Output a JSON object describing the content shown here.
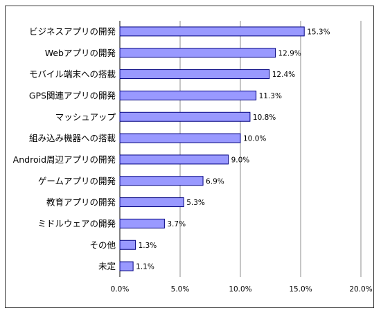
{
  "chart_data": {
    "type": "bar",
    "orientation": "horizontal",
    "categories": [
      "ビジネスアプリの開発",
      "Webアプリの開発",
      "モバイル端末への搭載",
      "GPS関連アプリの開発",
      "マッシュアップ",
      "組み込み機器への搭載",
      "Android周辺アプリの開発",
      "ゲームアプリの開発",
      "教育アプリの開発",
      "ミドルウェアの開発",
      "その他",
      "未定"
    ],
    "values": [
      15.3,
      12.9,
      12.4,
      11.3,
      10.8,
      10.0,
      9.0,
      6.9,
      5.3,
      3.7,
      1.3,
      1.1
    ],
    "value_labels": [
      "15.3%",
      "12.9%",
      "12.4%",
      "11.3%",
      "10.8%",
      "10.0%",
      "9.0%",
      "6.9%",
      "5.3%",
      "3.7%",
      "1.3%",
      "1.1%"
    ],
    "xlim": [
      0,
      20
    ],
    "xticks": [
      0,
      5,
      10,
      15,
      20
    ],
    "xtick_labels": [
      "0.0%",
      "5.0%",
      "10.0%",
      "15.0%",
      "20.0%"
    ],
    "grid": "vertical",
    "bar_color": "#9999ff",
    "bar_edge_color": "#000080",
    "title": "",
    "xlabel": "",
    "ylabel": ""
  }
}
